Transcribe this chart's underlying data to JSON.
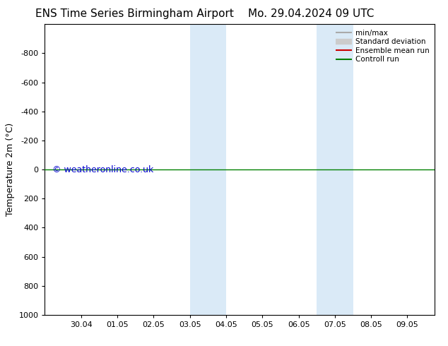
{
  "title_left": "ENS Time Series Birmingham Airport",
  "title_right": "Mo. 29.04.2024 09 UTC",
  "ylabel": "Temperature 2m (°C)",
  "watermark": "© weatheronline.co.uk",
  "watermark_color": "#0000cc",
  "xtick_labels": [
    "30.04",
    "01.05",
    "02.05",
    "03.05",
    "04.05",
    "05.05",
    "06.05",
    "07.05",
    "08.05",
    "09.05"
  ],
  "xtick_positions": [
    1,
    2,
    3,
    4,
    5,
    6,
    7,
    8,
    9,
    10
  ],
  "xlim": [
    0.0,
    10.75
  ],
  "ylim": [
    -1000,
    1000
  ],
  "ytick_positions": [
    -800,
    -600,
    -400,
    -200,
    0,
    200,
    400,
    600,
    800,
    1000
  ],
  "ytick_labels": [
    "-800",
    "-600",
    "-400",
    "-200",
    "0",
    "200",
    "400",
    "600",
    "800",
    "1000"
  ],
  "shaded_bands": [
    {
      "xmin": 4.0,
      "xmax": 4.5,
      "color": "#daeaf7"
    },
    {
      "xmin": 4.5,
      "xmax": 5.0,
      "color": "#daeaf7"
    },
    {
      "xmin": 7.5,
      "xmax": 8.0,
      "color": "#daeaf7"
    },
    {
      "xmin": 8.0,
      "xmax": 8.5,
      "color": "#daeaf7"
    }
  ],
  "control_run_y": 0,
  "control_run_color": "#008000",
  "ensemble_mean_color": "#cc0000",
  "background_color": "#ffffff",
  "plot_bg_color": "#ffffff",
  "legend_items": [
    {
      "label": "min/max",
      "color": "#aaaaaa",
      "lw": 1.5
    },
    {
      "label": "Standard deviation",
      "color": "#cccccc",
      "lw": 6
    },
    {
      "label": "Ensemble mean run",
      "color": "#cc0000",
      "lw": 1.5
    },
    {
      "label": "Controll run",
      "color": "#008000",
      "lw": 1.5
    }
  ],
  "title_fontsize": 11,
  "axis_fontsize": 9,
  "tick_fontsize": 8,
  "watermark_fontsize": 9
}
